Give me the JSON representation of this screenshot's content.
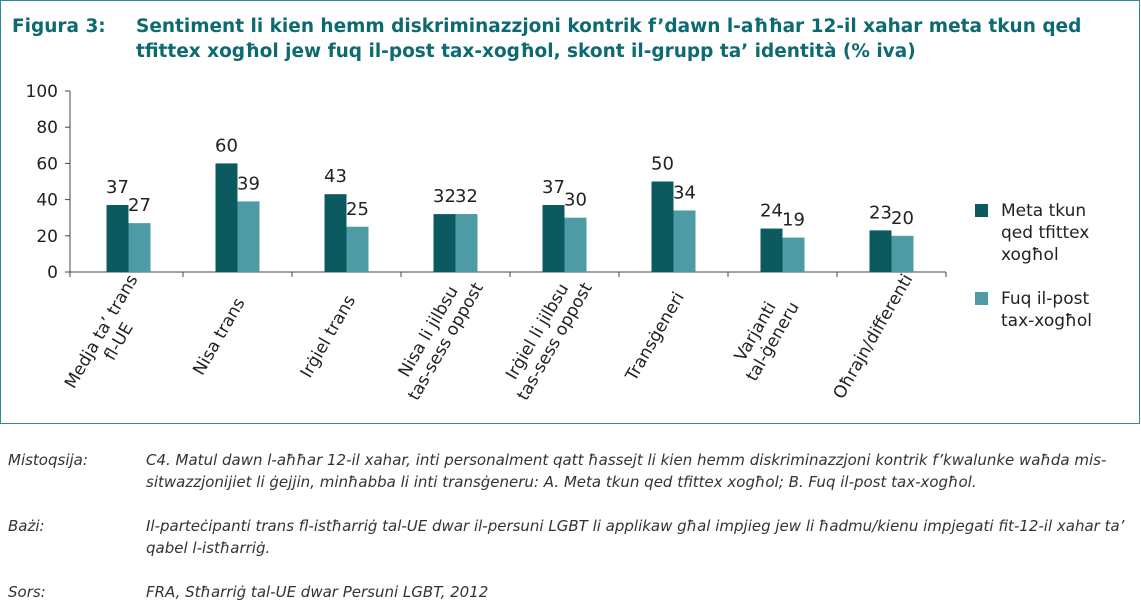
{
  "chart_data": {
    "type": "bar",
    "figure_label": "Figura 3:",
    "title": "Sentiment li kien hemm diskriminazzjoni kontrik f’dawn l-aħħar 12-il xahar meta tkun qed tfittex xogħol jew fuq il-post tax-xogħol, skont il-grupp ta’ identità (% iva)",
    "categories": [
      [
        "Medja ta’ trans",
        "fl-UE"
      ],
      [
        "Nisa trans"
      ],
      [
        "Irġiel trans"
      ],
      [
        "Nisa li jilbsu",
        "tas-sess oppost"
      ],
      [
        "Irġiel li jilbsu",
        "tas-sess oppost"
      ],
      [
        "Transġeneri"
      ],
      [
        "Varjanti",
        "tal-ġeneru"
      ],
      [
        "Oħrajn/differenti"
      ]
    ],
    "series": [
      {
        "name": "Meta tkun qed tfittex xogħol",
        "color": "#0b5a60",
        "values": [
          37,
          60,
          43,
          32,
          37,
          50,
          24,
          23
        ]
      },
      {
        "name": "Fuq il-post tax-xogħol",
        "color": "#4e9ba5",
        "values": [
          27,
          39,
          25,
          32,
          30,
          34,
          19,
          20
        ]
      }
    ],
    "ylim": [
      0,
      100
    ],
    "yticks": [
      0,
      20,
      40,
      60,
      80,
      100
    ],
    "legend": "right",
    "notes": [
      {
        "label": "Mistoqsija:",
        "text": "C4. Matul dawn l-aħħar 12-il xahar, inti personalment qatt ħassejt li kien hemm diskriminazzjoni kontrik f’kwalunke waħda mis-sitwazzjonijiet li ġejjin, minħabba li inti transġeneru: A. Meta tkun qed tfittex xogħol; B. Fuq il-post tax-xogħol."
      },
      {
        "label": "Bażi:",
        "text": "Il-parteċipanti trans fl-istħarriġ tal-UE dwar il-persuni LGBT li applikaw għal impjieg jew li ħadmu/kienu impjegati fit-12-il xahar ta’ qabel l-istħarriġ."
      },
      {
        "label": "Sors:",
        "text": "FRA, Stħarriġ tal-UE dwar Persuni LGBT, 2012"
      }
    ]
  }
}
